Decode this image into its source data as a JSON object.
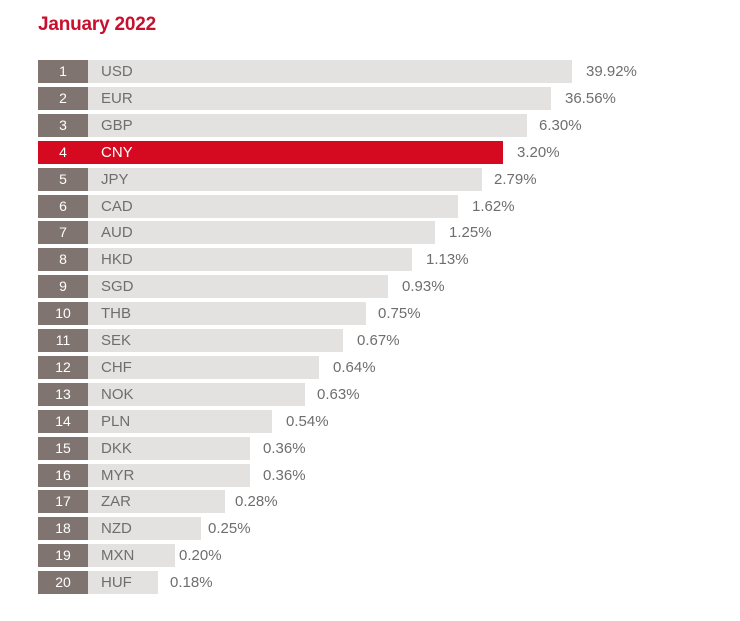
{
  "title": "January 2022",
  "colors": {
    "title": "#c8102e",
    "rank_box": "#7f7470",
    "bar": "#e3e2e1",
    "highlight": "#d5091f",
    "text": "#6e6e6e"
  },
  "chart_data": {
    "type": "bar",
    "orientation": "horizontal",
    "title": "January 2022",
    "unit": "%",
    "highlight_category": "CNY",
    "ranks": [
      1,
      2,
      3,
      4,
      5,
      6,
      7,
      8,
      9,
      10,
      11,
      12,
      13,
      14,
      15,
      16,
      17,
      18,
      19,
      20
    ],
    "categories": [
      "USD",
      "EUR",
      "GBP",
      "CNY",
      "JPY",
      "CAD",
      "AUD",
      "HKD",
      "SGD",
      "THB",
      "SEK",
      "CHF",
      "NOK",
      "PLN",
      "DKK",
      "MYR",
      "ZAR",
      "NZD",
      "MXN",
      "HUF"
    ],
    "values": [
      39.92,
      36.56,
      6.3,
      3.2,
      2.79,
      1.62,
      1.25,
      1.13,
      0.93,
      0.75,
      0.67,
      0.64,
      0.63,
      0.54,
      0.36,
      0.36,
      0.28,
      0.25,
      0.2,
      0.18
    ],
    "value_labels": [
      "39.92%",
      "36.56%",
      "6.30%",
      "3.20%",
      "2.79%",
      "1.62%",
      "1.25%",
      "1.13%",
      "0.93%",
      "0.75%",
      "0.67%",
      "0.64%",
      "0.63%",
      "0.54%",
      "0.36%",
      "0.36%",
      "0.28%",
      "0.25%",
      "0.20%",
      "0.18%"
    ]
  }
}
